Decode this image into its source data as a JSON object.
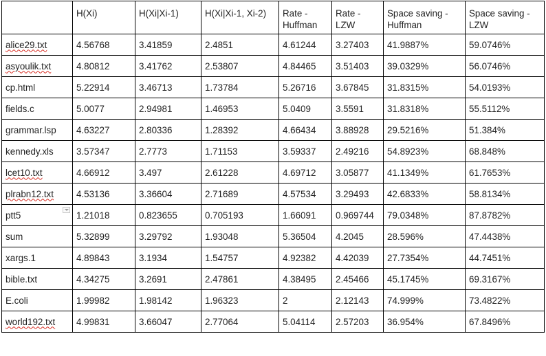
{
  "table": {
    "headers": [
      [
        ""
      ],
      [
        "H(Xi)"
      ],
      [
        "H(Xi|Xi-1)"
      ],
      [
        "H(Xi|Xi-1, Xi-2)"
      ],
      [
        "Rate -",
        "Huffman"
      ],
      [
        "Rate -",
        "LZW"
      ],
      [
        "Space saving -",
        "Huffman"
      ],
      [
        "Space saving -",
        "LZW"
      ]
    ],
    "rows": [
      [
        "alice29.txt",
        "4.56768",
        "3.41859",
        "2.4851",
        "4.61244",
        "3.27403",
        "41.9887%",
        "59.0746%"
      ],
      [
        "asyoulik.txt",
        "4.80812",
        "3.41762",
        "2.53807",
        "4.84465",
        "3.51403",
        "39.0329%",
        "56.0746%"
      ],
      [
        "cp.html",
        "5.22914",
        "3.46713",
        "1.73784",
        "5.26716",
        "3.67845",
        "31.8315%",
        "54.0193%"
      ],
      [
        "fields.c",
        "5.0077",
        "2.94981",
        "1.46953",
        "5.0409",
        "3.5591",
        "31.8318%",
        "55.5112%"
      ],
      [
        "grammar.lsp",
        "4.63227",
        "2.80336",
        "1.28392",
        "4.66434",
        "3.88928",
        "29.5216%",
        "51.384%"
      ],
      [
        "kennedy.xls",
        "3.57347",
        "2.7773",
        "1.71153",
        "3.59337",
        "2.49216",
        "54.8923%",
        "68.848%"
      ],
      [
        "lcet10.txt",
        "4.66912",
        "3.497",
        "2.61228",
        "4.69712",
        "3.05877",
        "41.1349%",
        "61.7653%"
      ],
      [
        "plrabn12.txt",
        "4.53136",
        "3.36604",
        "2.71689",
        "4.57534",
        "3.29493",
        "42.6833%",
        "58.8134%"
      ],
      [
        "ptt5",
        "1.21018",
        "0.823655",
        "0.705193",
        "1.66091",
        "0.969744",
        "79.0348%",
        "87.8782%"
      ],
      [
        "sum",
        "5.32899",
        "3.29792",
        "1.93048",
        "5.36504",
        "4.2045",
        "28.596%",
        "47.4438%"
      ],
      [
        "xargs.1",
        "4.89843",
        "3.1934",
        "1.54757",
        "4.92382",
        "4.42039",
        "27.7354%",
        "44.7451%"
      ],
      [
        "bible.txt",
        "4.34275",
        "3.2691",
        "2.47861",
        "4.38495",
        "2.45466",
        "45.1745%",
        "69.3167%"
      ],
      [
        "E.coli",
        "1.99982",
        "1.98142",
        "1.96323",
        "2",
        "2.12143",
        "74.999%",
        "73.4822%"
      ],
      [
        "world192.txt",
        "4.99831",
        "3.66047",
        "2.77064",
        "5.04114",
        "2.57203",
        "36.954%",
        "67.8496%"
      ]
    ],
    "spellcheck_rows": [
      0,
      1,
      6,
      7,
      13
    ],
    "filter_icon_row": 8,
    "colors": {
      "border": "#000000",
      "text": "#222222",
      "spellcheck": "#d93025"
    },
    "icons": {
      "filter_row_8": "dropdown-filter-icon"
    }
  }
}
